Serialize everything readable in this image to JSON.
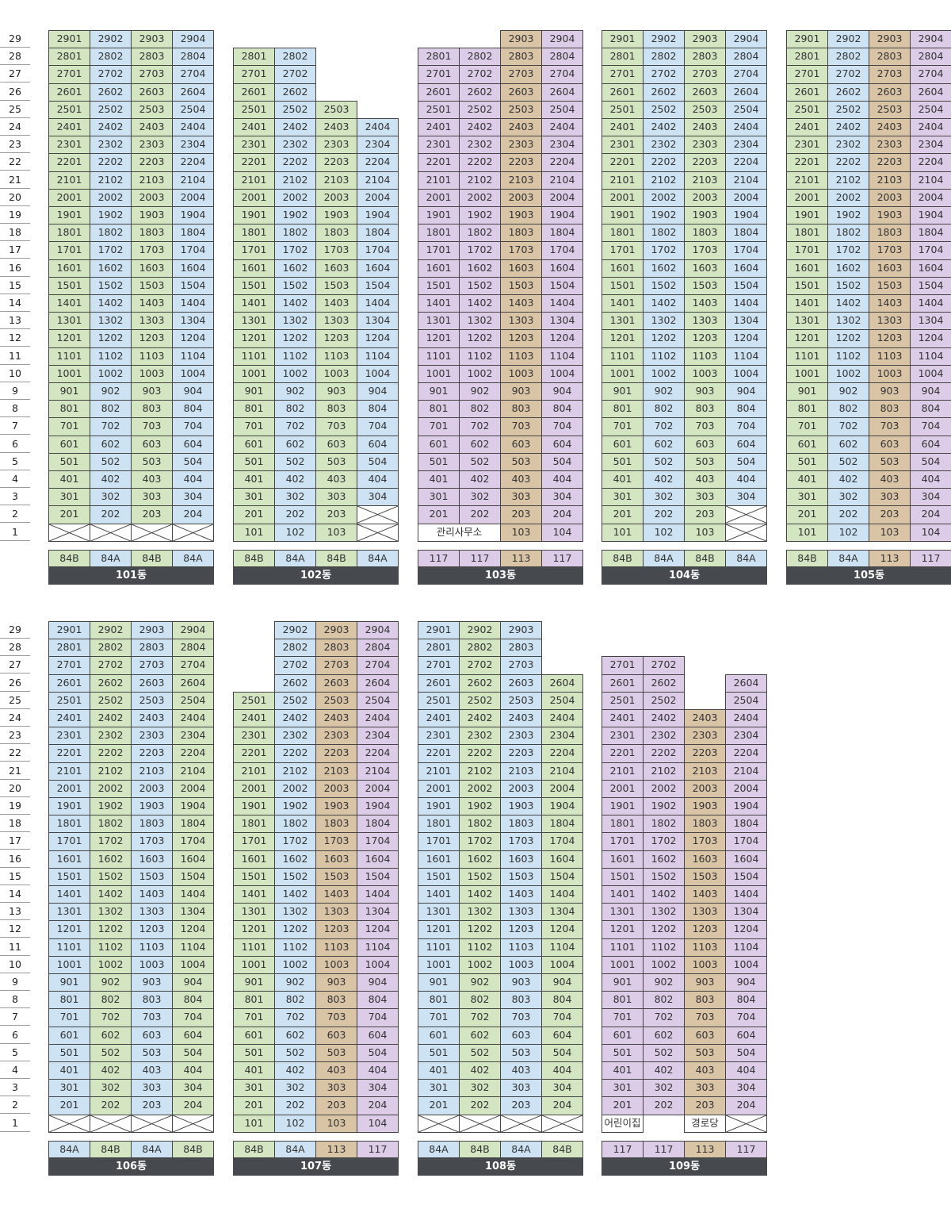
{
  "colors": {
    "84A": "#cde3f3",
    "84B": "#d3e5c1",
    "113": "#d9c4a6",
    "117": "#dccce8",
    "blank": "#ffffff",
    "header": "#46494d"
  },
  "floors": [
    "1",
    "2",
    "3",
    "4",
    "5",
    "6",
    "7",
    "8",
    "9",
    "10",
    "11",
    "12",
    "13",
    "14",
    "15",
    "16",
    "17",
    "18",
    "19",
    "20",
    "21",
    "22",
    "23",
    "24",
    "25",
    "26",
    "27",
    "28",
    "29"
  ],
  "buildings": [
    {
      "name": "101동",
      "columns": [
        {
          "type": "84B",
          "min": 2,
          "max": 29
        },
        {
          "type": "84A",
          "min": 2,
          "max": 29
        },
        {
          "type": "84B",
          "min": 2,
          "max": 29
        },
        {
          "type": "84A",
          "min": 2,
          "max": 29
        }
      ],
      "ground": [
        "x",
        "x",
        "x",
        "x"
      ]
    },
    {
      "name": "102동",
      "columns": [
        {
          "type": "84B",
          "min": 1,
          "max": 28
        },
        {
          "type": "84A",
          "min": 1,
          "max": 28
        },
        {
          "type": "84B",
          "min": 1,
          "max": 25
        },
        {
          "type": "84A",
          "min": 3,
          "max": 24
        }
      ],
      "ground": [
        "",
        "",
        "",
        "x"
      ],
      "skip": [
        {
          "col": 3,
          "floor": 2
        }
      ]
    },
    {
      "name": "103동",
      "columns": [
        {
          "type": "117",
          "min": 2,
          "max": 28
        },
        {
          "type": "117",
          "min": 2,
          "max": 28
        },
        {
          "type": "113",
          "min": 1,
          "max": 29
        },
        {
          "type": "117",
          "min": 1,
          "max": 29
        }
      ],
      "ground": [
        "관리사무소",
        "merged",
        "",
        ""
      ]
    },
    {
      "name": "104동",
      "columns": [
        {
          "type": "84B",
          "min": 1,
          "max": 29
        },
        {
          "type": "84A",
          "min": 1,
          "max": 29
        },
        {
          "type": "84B",
          "min": 1,
          "max": 29
        },
        {
          "type": "84A",
          "min": 3,
          "max": 29
        }
      ],
      "ground": [
        "",
        "",
        "",
        "x"
      ],
      "skip": [
        {
          "col": 3,
          "floor": 2
        }
      ]
    },
    {
      "name": "105동",
      "columns": [
        {
          "type": "84B",
          "min": 1,
          "max": 29
        },
        {
          "type": "84A",
          "min": 1,
          "max": 29
        },
        {
          "type": "113",
          "min": 1,
          "max": 29
        },
        {
          "type": "117",
          "min": 1,
          "max": 29
        }
      ],
      "ground": [
        "",
        "",
        "",
        ""
      ]
    },
    {
      "name": "106동",
      "columns": [
        {
          "type": "84A",
          "min": 2,
          "max": 29
        },
        {
          "type": "84B",
          "min": 2,
          "max": 29
        },
        {
          "type": "84A",
          "min": 2,
          "max": 29
        },
        {
          "type": "84B",
          "min": 2,
          "max": 29
        }
      ],
      "ground": [
        "x",
        "x",
        "x",
        "x"
      ]
    },
    {
      "name": "107동",
      "columns": [
        {
          "type": "84B",
          "min": 1,
          "max": 25
        },
        {
          "type": "84A",
          "min": 1,
          "max": 29
        },
        {
          "type": "113",
          "min": 1,
          "max": 29
        },
        {
          "type": "117",
          "min": 1,
          "max": 29
        }
      ],
      "ground": [
        "",
        "",
        "",
        ""
      ]
    },
    {
      "name": "108동",
      "columns": [
        {
          "type": "84A",
          "min": 2,
          "max": 29
        },
        {
          "type": "84B",
          "min": 2,
          "max": 29
        },
        {
          "type": "84A",
          "min": 2,
          "max": 29
        },
        {
          "type": "84B",
          "min": 2,
          "max": 26
        }
      ],
      "ground": [
        "x",
        "x",
        "x",
        "x"
      ]
    },
    {
      "name": "109동",
      "columns": [
        {
          "type": "117",
          "min": 2,
          "max": 27
        },
        {
          "type": "117",
          "min": 2,
          "max": 27
        },
        {
          "type": "113",
          "min": 2,
          "max": 24
        },
        {
          "type": "117",
          "min": 2,
          "max": 26
        }
      ],
      "ground": [
        "어린이집",
        "",
        "경로당",
        "x"
      ]
    }
  ]
}
